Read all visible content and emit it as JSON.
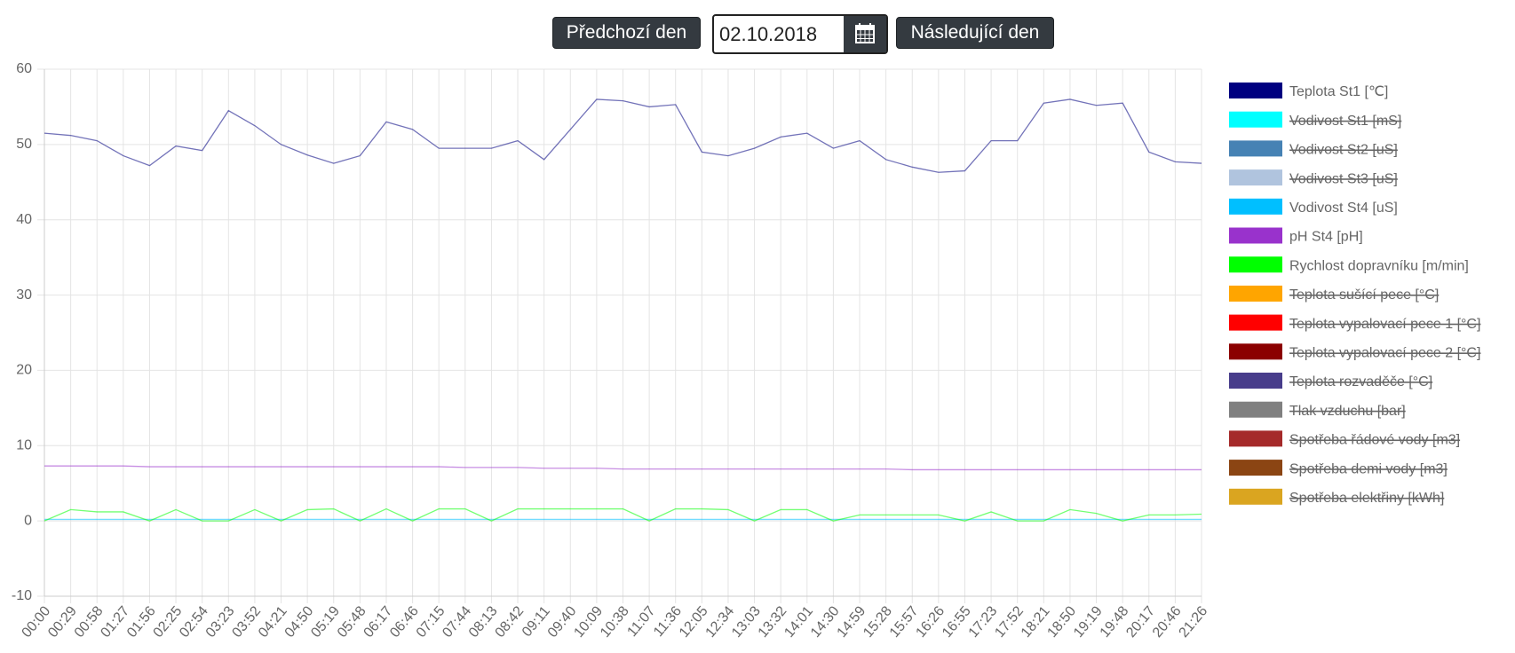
{
  "toolbar": {
    "prev_button": "Předchozí den",
    "date": "02.10.2018",
    "next_button": "Následující den"
  },
  "chart_data": {
    "type": "line",
    "categories": [
      "00:00",
      "00:29",
      "00:58",
      "01:27",
      "01:56",
      "02:25",
      "02:54",
      "03:23",
      "03:52",
      "04:21",
      "04:50",
      "05:19",
      "05:48",
      "06:17",
      "06:46",
      "07:15",
      "07:44",
      "08:13",
      "08:42",
      "09:11",
      "09:40",
      "10:09",
      "10:38",
      "11:07",
      "11:36",
      "12:05",
      "12:34",
      "13:03",
      "13:32",
      "14:01",
      "14:30",
      "14:59",
      "15:28",
      "15:57",
      "16:26",
      "16:55",
      "17:23",
      "17:52",
      "18:21",
      "18:50",
      "19:19",
      "19:48",
      "20:17",
      "20:46",
      "21:26"
    ],
    "ylim": [
      -10,
      60
    ],
    "yticks": [
      -10,
      0,
      10,
      20,
      30,
      40,
      50,
      60
    ],
    "grid": true,
    "legend": "right",
    "series": [
      {
        "name": "Teplota St1 [℃]",
        "color": "#000080",
        "values": [
          51.5,
          51.2,
          50.5,
          48.5,
          47.2,
          49.8,
          49.2,
          54.5,
          52.5,
          50,
          48.6,
          47.5,
          48.5,
          53,
          52,
          49.5,
          49.5,
          49.5,
          50.5,
          48,
          52,
          56,
          55.8,
          55,
          55.3,
          49,
          48.5,
          49.5,
          51,
          51.5,
          49.5,
          50.5,
          48,
          47,
          46.3,
          46.5,
          50.5,
          50.5,
          55.5,
          56,
          55.2,
          55.5,
          49,
          47.7,
          47.5
        ]
      },
      {
        "name": "Vodivost St1 [mS]",
        "color": "#00FFFF",
        "hidden": true
      },
      {
        "name": "Vodivost St2 [uS]",
        "color": "#4682B4",
        "hidden": true
      },
      {
        "name": "Vodivost St3 [uS]",
        "color": "#B0C4DE",
        "hidden": true
      },
      {
        "name": "Vodivost St4 [uS]",
        "color": "#00BFFF",
        "values": [
          0.2,
          0.2,
          0.2,
          0.2,
          0.2,
          0.2,
          0.2,
          0.2,
          0.2,
          0.2,
          0.2,
          0.2,
          0.2,
          0.2,
          0.2,
          0.2,
          0.2,
          0.2,
          0.2,
          0.2,
          0.2,
          0.2,
          0.2,
          0.2,
          0.2,
          0.2,
          0.2,
          0.2,
          0.2,
          0.2,
          0.2,
          0.2,
          0.2,
          0.2,
          0.2,
          0.2,
          0.2,
          0.2,
          0.2,
          0.2,
          0.2,
          0.2,
          0.2,
          0.2,
          0.2
        ]
      },
      {
        "name": "pH St4 [pH]",
        "color": "#9932CC",
        "values": [
          7.3,
          7.3,
          7.3,
          7.3,
          7.2,
          7.2,
          7.2,
          7.2,
          7.2,
          7.2,
          7.2,
          7.2,
          7.2,
          7.2,
          7.2,
          7.2,
          7.1,
          7.1,
          7.1,
          7.0,
          7.0,
          7.0,
          6.9,
          6.9,
          6.9,
          6.9,
          6.9,
          6.9,
          6.9,
          6.9,
          6.9,
          6.9,
          6.9,
          6.8,
          6.8,
          6.8,
          6.8,
          6.8,
          6.8,
          6.8,
          6.8,
          6.8,
          6.8,
          6.8,
          6.8
        ]
      },
      {
        "name": "Rychlost dopravníku [m/min]",
        "color": "#00FF00",
        "values": [
          0,
          1.5,
          1.2,
          1.2,
          0,
          1.5,
          0,
          0,
          1.5,
          0,
          1.5,
          1.6,
          0,
          1.6,
          0,
          1.6,
          1.6,
          0,
          1.6,
          1.6,
          1.6,
          1.6,
          1.6,
          0,
          1.6,
          1.6,
          1.5,
          0,
          1.5,
          1.5,
          0,
          0.8,
          0.8,
          0.8,
          0.8,
          0,
          1.2,
          0,
          0,
          1.5,
          1,
          0,
          0.8,
          0.8,
          0.9
        ]
      },
      {
        "name": "Teplota sušící pece [°C]",
        "color": "#FFA500",
        "hidden": true
      },
      {
        "name": "Teplota vypalovací pece 1 [°C]",
        "color": "#FF0000",
        "hidden": true
      },
      {
        "name": "Teplota vypalovací pece 2 [°C]",
        "color": "#8B0000",
        "hidden": true
      },
      {
        "name": "Teplota rozvaděče [°C]",
        "color": "#483D8B",
        "hidden": true
      },
      {
        "name": "Tlak vzduchu [bar]",
        "color": "#808080",
        "hidden": true
      },
      {
        "name": "Spotřeba řádové vody [m3]",
        "color": "#A52A2A",
        "hidden": true
      },
      {
        "name": "Spotřeba demi vody [m3]",
        "color": "#8B4513",
        "hidden": true
      },
      {
        "name": "Spotřeba elektřiny [kWh]",
        "color": "#DAA520",
        "hidden": true
      }
    ]
  }
}
